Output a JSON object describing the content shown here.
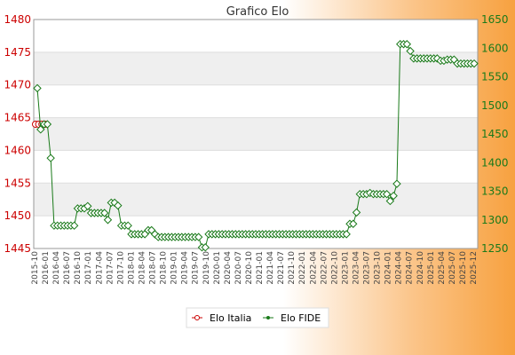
{
  "chart_data": {
    "type": "line",
    "title": "Grafico Elo",
    "legend_position": "bottom-center",
    "y_left": {
      "min": 1445,
      "max": 1480,
      "ticks": [
        1445,
        1450,
        1455,
        1460,
        1465,
        1470,
        1475,
        1480
      ],
      "color": "#cc0000"
    },
    "y_right": {
      "min": 1250,
      "max": 1650,
      "ticks": [
        1250,
        1300,
        1350,
        1400,
        1450,
        1500,
        1550,
        1600,
        1650
      ],
      "color": "#1a7a1a"
    },
    "x_tick_labels": [
      "2015-10",
      "2016-01",
      "2016-04",
      "2016-07",
      "2016-10",
      "2017-01",
      "2017-04",
      "2017-07",
      "2017-10",
      "2018-01",
      "2018-04",
      "2018-07",
      "2018-10",
      "2019-01",
      "2019-04",
      "2019-07",
      "2019-10",
      "2020-01",
      "2020-04",
      "2020-07",
      "2020-10",
      "2021-01",
      "2021-04",
      "2021-07",
      "2021-10",
      "2022-01",
      "2022-04",
      "2022-07",
      "2022-10",
      "2023-01",
      "2023-04",
      "2023-07",
      "2023-10",
      "2024-01",
      "2024-04",
      "2024-07",
      "2024-10",
      "2025-01",
      "2025-04",
      "2025-07",
      "2025-10",
      "2025-12"
    ],
    "series": [
      {
        "name": "Elo Italia",
        "axis": "left",
        "color": "#cc0000",
        "marker": "circle",
        "values": [
          1464,
          1464,
          1464,
          1464
        ]
      },
      {
        "name": "Elo FIDE",
        "axis": "right",
        "color": "#1a7a1a",
        "marker": "diamond",
        "values": [
          1530,
          1458,
          1467,
          1467,
          1408,
          1290,
          1290,
          1290,
          1290,
          1290,
          1290,
          1290,
          1320,
          1320,
          1320,
          1324,
          1312,
          1312,
          1312,
          1312,
          1312,
          1300,
          1330,
          1330,
          1325,
          1290,
          1290,
          1290,
          1275,
          1275,
          1275,
          1275,
          1275,
          1282,
          1282,
          1275,
          1270,
          1270,
          1270,
          1270,
          1270,
          1270,
          1270,
          1270,
          1270,
          1270,
          1270,
          1270,
          1270,
          1252,
          1252,
          1275,
          1275,
          1275,
          1275,
          1275,
          1275,
          1275,
          1275,
          1275,
          1275,
          1275,
          1275,
          1275,
          1275,
          1275,
          1275,
          1275,
          1275,
          1275,
          1275,
          1275,
          1275,
          1275,
          1275,
          1275,
          1275,
          1275,
          1275,
          1275,
          1275,
          1275,
          1275,
          1275,
          1275,
          1275,
          1275,
          1275,
          1275,
          1275,
          1275,
          1275,
          1275,
          1293,
          1293,
          1313,
          1345,
          1345,
          1345,
          1347,
          1345,
          1345,
          1345,
          1345,
          1345,
          1333,
          1342,
          1363,
          1607,
          1607,
          1607,
          1595,
          1582,
          1582,
          1582,
          1582,
          1582,
          1582,
          1582,
          1582,
          1578,
          1578,
          1580,
          1580,
          1580,
          1573,
          1573,
          1573,
          1573,
          1573,
          1573
        ]
      }
    ]
  }
}
